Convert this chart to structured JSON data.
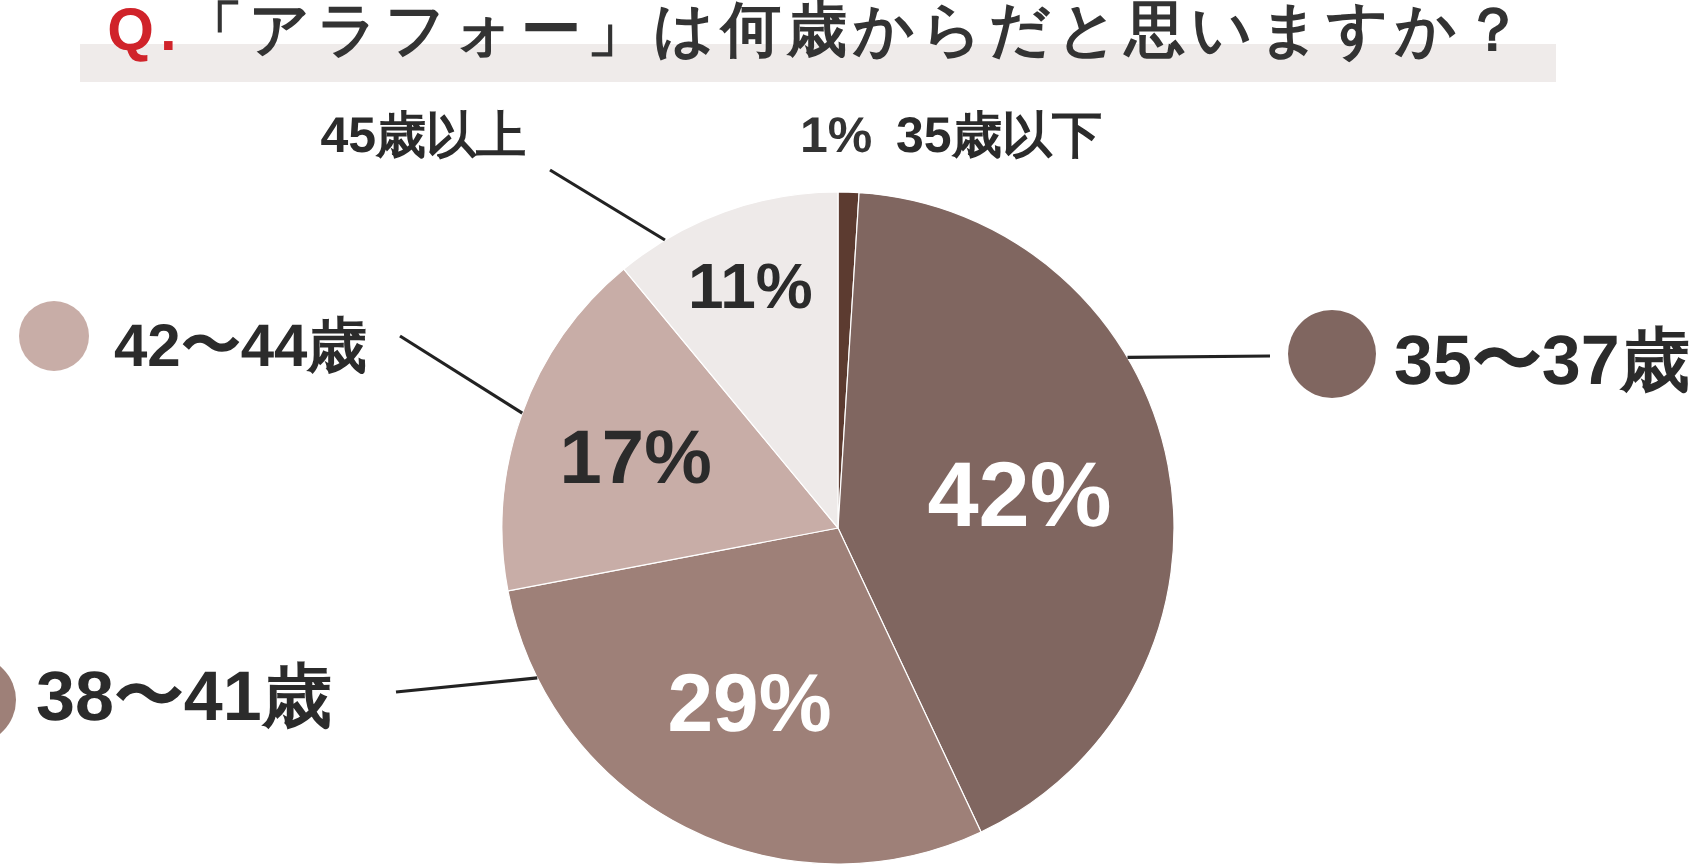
{
  "chart_data": {
    "type": "pie",
    "title": "Q.「アラフォー」は何歳からだと思いますか？",
    "categories": [
      "35歳以下",
      "35〜37歳",
      "38〜41歳",
      "42〜44歳",
      "45歳以上"
    ],
    "values": [
      1,
      42,
      29,
      17,
      11
    ],
    "value_labels": [
      "1%",
      "42%",
      "29%",
      "17%",
      "11%"
    ],
    "colors": [
      "#5c3b30",
      "#806660",
      "#9e8078",
      "#c8ada7",
      "#eeeae9"
    ],
    "legend": "left"
  }
}
